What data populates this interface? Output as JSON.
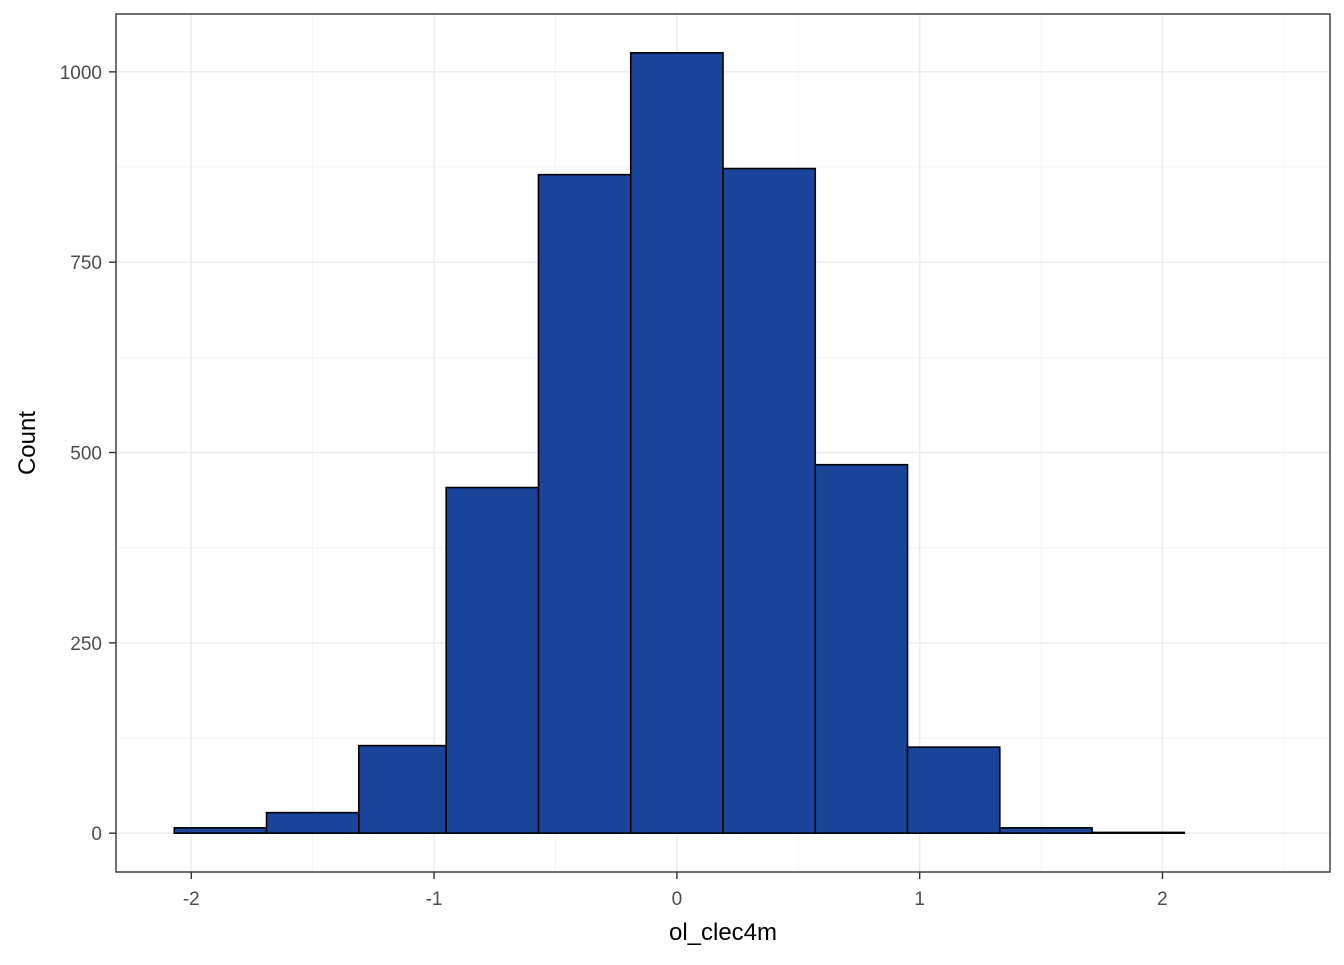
{
  "chart_data": {
    "type": "bar",
    "subtype": "histogram",
    "xlabel": "ol_clec4m",
    "ylabel": "Count",
    "xlim": [
      -2.31,
      2.69
    ],
    "ylim": [
      -51,
      1076
    ],
    "x_ticks": [
      -2,
      -1,
      0,
      1,
      2
    ],
    "x_tick_labels": [
      "-2",
      "-1",
      "0",
      "1",
      "2"
    ],
    "y_ticks": [
      0,
      250,
      500,
      750,
      1000
    ],
    "y_tick_labels": [
      "0",
      "250",
      "500",
      "750",
      "1000"
    ],
    "grid": true,
    "legend": "none",
    "bar_fill": "#1a4499",
    "bar_outline": "#000000",
    "bins": [
      {
        "x_start": -2.07,
        "x_end": -1.69,
        "count": 7
      },
      {
        "x_start": -1.69,
        "x_end": -1.31,
        "count": 27
      },
      {
        "x_start": -1.31,
        "x_end": -0.95,
        "count": 115
      },
      {
        "x_start": -0.95,
        "x_end": -0.57,
        "count": 454
      },
      {
        "x_start": -0.57,
        "x_end": -0.19,
        "count": 865
      },
      {
        "x_start": -0.19,
        "x_end": 0.19,
        "count": 1025
      },
      {
        "x_start": 0.19,
        "x_end": 0.57,
        "count": 873
      },
      {
        "x_start": 0.57,
        "x_end": 0.95,
        "count": 484
      },
      {
        "x_start": 0.95,
        "x_end": 1.33,
        "count": 113
      },
      {
        "x_start": 1.33,
        "x_end": 1.71,
        "count": 7
      },
      {
        "x_start": 1.71,
        "x_end": 2.09,
        "count": 1
      },
      {
        "x_start": 2.09,
        "x_end": 2.47,
        "count": 0
      }
    ]
  }
}
